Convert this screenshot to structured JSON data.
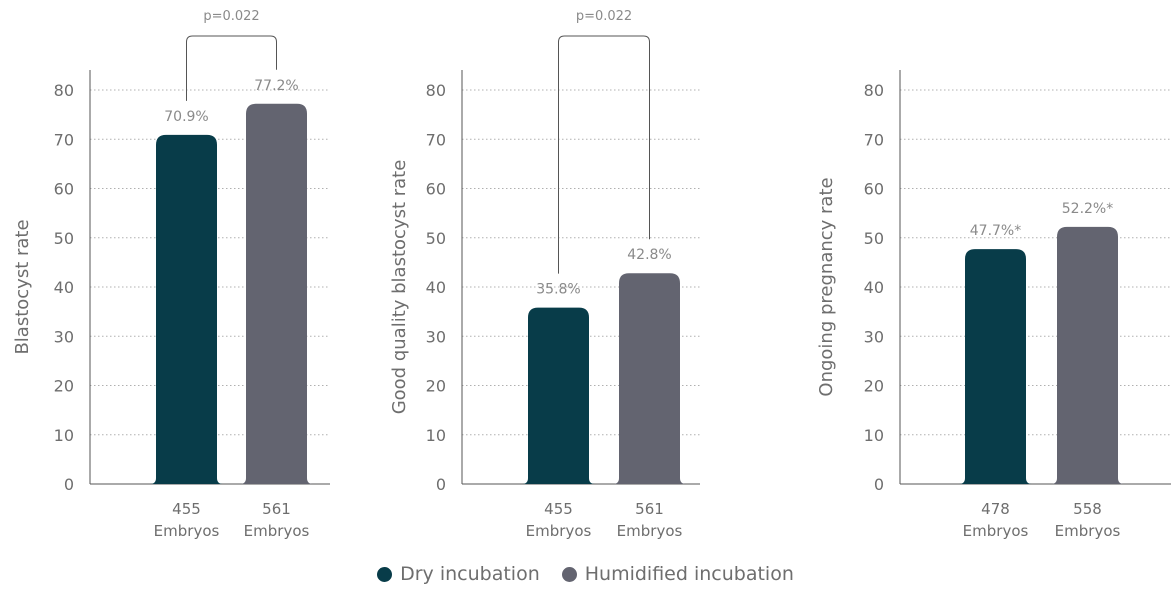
{
  "colors": {
    "dry": "#083c49",
    "humidified": "#636470",
    "text": "#6e6e6e",
    "grid": "#b0b0b0"
  },
  "legend": {
    "items": [
      {
        "label": "Dry incubation",
        "color": "#083c49"
      },
      {
        "label": "Humidified incubation",
        "color": "#636470"
      }
    ]
  },
  "chart_data": [
    {
      "type": "bar",
      "ylabel": "Blastocyst rate",
      "ylim": [
        0,
        80
      ],
      "yticks": [
        "0",
        "10",
        "20",
        "30",
        "40",
        "50",
        "60",
        "70",
        "80"
      ],
      "categories": [
        {
          "line1": "455",
          "line2": "Embryos"
        },
        {
          "line1": "561",
          "line2": "Embryos"
        }
      ],
      "values": [
        70.9,
        77.2
      ],
      "value_labels": [
        "70.9%",
        "77.2%"
      ],
      "bracket": {
        "label": "p=0.022",
        "from": 0,
        "to": 1
      },
      "grid": "horizontal-dotted"
    },
    {
      "type": "bar",
      "ylabel": "Good quality blastocyst rate",
      "ylim": [
        0,
        80
      ],
      "yticks": [
        "0",
        "10",
        "20",
        "30",
        "40",
        "50",
        "60",
        "70",
        "80"
      ],
      "categories": [
        {
          "line1": "455",
          "line2": "Embryos"
        },
        {
          "line1": "561",
          "line2": "Embryos"
        }
      ],
      "values": [
        35.8,
        42.8
      ],
      "value_labels": [
        "35.8%",
        "42.8%"
      ],
      "bracket": {
        "label": "p=0.022",
        "from": 0,
        "to": 1
      },
      "grid": "horizontal-dotted"
    },
    {
      "type": "bar",
      "ylabel": "Ongoing pregnancy rate",
      "ylim": [
        0,
        80
      ],
      "yticks": [
        "0",
        "10",
        "20",
        "30",
        "40",
        "50",
        "60",
        "70",
        "80"
      ],
      "categories": [
        {
          "line1": "478",
          "line2": "Embryos"
        },
        {
          "line1": "558",
          "line2": "Embryos"
        }
      ],
      "values": [
        47.7,
        52.2
      ],
      "value_labels": [
        "47.7%*",
        "52.2%*"
      ],
      "grid": "horizontal-dotted"
    }
  ]
}
